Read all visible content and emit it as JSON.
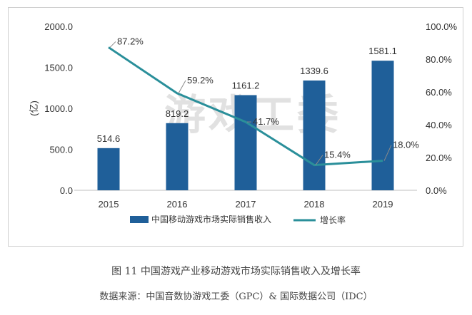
{
  "chart_data": {
    "type": "bar",
    "categories": [
      "2015",
      "2016",
      "2017",
      "2018",
      "2019"
    ],
    "series": [
      {
        "name": "中国移动游戏市场实际销售收入",
        "type": "bar",
        "axis": "left",
        "values": [
          514.6,
          819.2,
          1161.2,
          1339.6,
          1581.1
        ],
        "labels": [
          "514.6",
          "819.2",
          "1161.2",
          "1339.6",
          "1581.1"
        ]
      },
      {
        "name": "增长率",
        "type": "line",
        "axis": "right",
        "values": [
          87.2,
          59.2,
          41.7,
          15.4,
          18.0
        ],
        "labels": [
          "87.2%",
          "59.2%",
          "41.7%",
          "15.4%",
          "18.0%"
        ]
      }
    ],
    "ylabel": "(亿)",
    "ylim": [
      0,
      2000
    ],
    "yticks": [
      "0.0",
      "500.0",
      "1000.0",
      "1500.0",
      "2000.0"
    ],
    "y2lim": [
      0,
      100
    ],
    "y2ticks": [
      "0.0%",
      "20.0%",
      "40.0%",
      "60.0%",
      "80.0%",
      "100.0%"
    ],
    "watermark": "游戏工委",
    "legend_position": "bottom",
    "grid": false
  },
  "colors": {
    "bar": "#1f5f99",
    "line": "#2a8f9a",
    "axis_text": "#333333",
    "watermark": "#c9c9c9"
  },
  "caption": {
    "title": "图 11  中国游戏产业移动游戏市场实际销售收入及增长率",
    "source": "数据来源：中国音数协游戏工委（GPC）& 国际数据公司（IDC）"
  }
}
